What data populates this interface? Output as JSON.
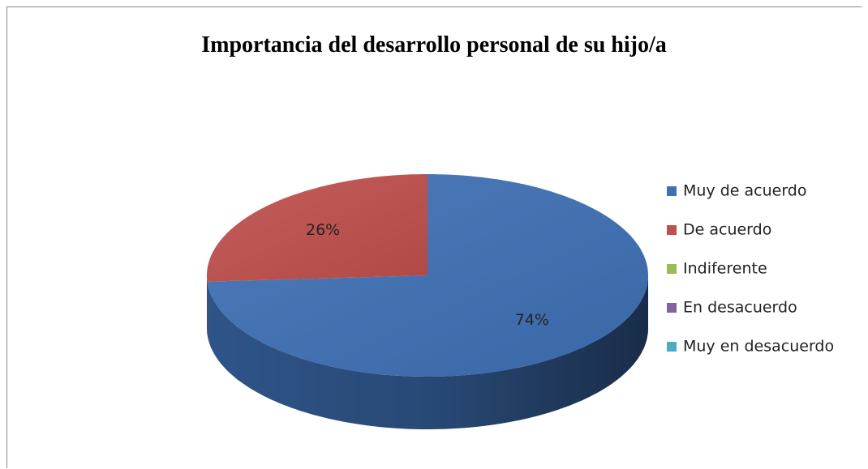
{
  "chart_data": {
    "type": "pie",
    "title": "Importancia del desarrollo personal de su hijo/a",
    "categories": [
      "Muy de acuerdo",
      "De acuerdo",
      "Indiferente",
      "En desacuerdo",
      "Muy en desacuerdo"
    ],
    "values": [
      74,
      26,
      0,
      0,
      0
    ],
    "value_labels": [
      "74%",
      "26%",
      null,
      null,
      null
    ],
    "colors": [
      "#3e70b5",
      "#c0504d",
      "#9bbb59",
      "#8064a2",
      "#4bacc6"
    ],
    "legend": "right"
  }
}
